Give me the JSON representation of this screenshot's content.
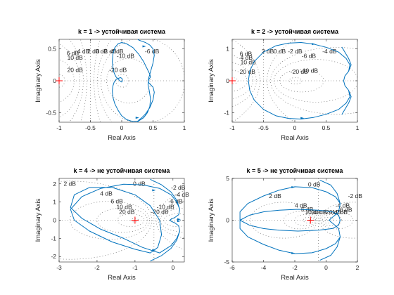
{
  "chart_data": [
    {
      "type": "line",
      "title": "k = 1 -> устойчивая система",
      "xlabel": "Real Axis",
      "ylabel": "Imaginary Axis",
      "xlim": [
        -1,
        1
      ],
      "ylim": [
        -0.65,
        0.65
      ],
      "xticks": [
        -1,
        -0.5,
        0,
        0.5,
        1
      ],
      "xtick_labels": [
        "-1",
        "-0.5",
        "0",
        "0.5",
        "1"
      ],
      "yticks": [
        -0.5,
        0,
        0.5
      ],
      "ytick_labels": [
        "-0.5",
        "0",
        "0.5"
      ],
      "grid_labels": [
        "6 dB",
        "10 dB",
        "4 dB",
        "2 dB",
        "0 dB",
        "-2 dB",
        "-4 dB",
        "-10 dB",
        "-6 dB",
        "20 dB",
        "-20 dB"
      ],
      "critical_point": [
        -1,
        0
      ],
      "series": [
        {
          "x": [
            0.25,
            0.27,
            0.32,
            0.38,
            0.45,
            0.5,
            0.52,
            0.5,
            0.46,
            0.43,
            0.42,
            0.44,
            0.46,
            0.45,
            0.41,
            0.35,
            0.27,
            0.18,
            0.08,
            0,
            -0.06,
            -0.11,
            -0.14,
            -0.15,
            -0.14,
            -0.12,
            -0.09,
            -0.05,
            -0.02,
            0,
            0.01,
            0.01,
            0,
            -0.02,
            -0.05,
            -0.09,
            -0.12,
            -0.14,
            -0.15,
            -0.14,
            -0.11,
            -0.06,
            0,
            0.08,
            0.18,
            0.27,
            0.35,
            0.41,
            0.45,
            0.46,
            0.44,
            0.42,
            0.43,
            0.46,
            0.5,
            0.52,
            0.5,
            0.45,
            0.38,
            0.32,
            0.27,
            0.25
          ],
          "y": [
            -0.66,
            -0.62,
            -0.58,
            -0.52,
            -0.42,
            -0.3,
            -0.18,
            -0.1,
            -0.06,
            -0.03,
            0,
            0.03,
            0.06,
            0.1,
            0.18,
            0.3,
            0.42,
            0.52,
            0.58,
            0.6,
            0.58,
            0.52,
            0.42,
            0.3,
            0.2,
            0.12,
            0.06,
            0.02,
            -0.01,
            -0.02,
            0,
            0.02,
            0.04,
            0.05,
            0.04,
            0.02,
            -0.02,
            -0.08,
            -0.16,
            -0.26,
            -0.36,
            -0.46,
            -0.55,
            -0.61,
            -0.64,
            -0.63,
            -0.58,
            -0.5,
            -0.4,
            -0.28,
            -0.16,
            -0.06,
            0.04,
            0.14,
            0.28,
            0.4,
            0.5,
            0.56,
            0.6,
            0.62,
            0.64,
            0.66
          ]
        }
      ],
      "arrow_points": [
        [
          0.25,
          -0.58
        ],
        [
          0.36,
          0.54
        ]
      ]
    },
    {
      "type": "line",
      "title": "k = 2 -> устойчивая система",
      "xlabel": "Real Axis",
      "ylabel": "Imaginary Axis",
      "xlim": [
        -1,
        1
      ],
      "ylim": [
        -1.3,
        1.3
      ],
      "xticks": [
        -1,
        -0.5,
        0,
        0.5,
        1
      ],
      "xtick_labels": [
        "-1",
        "-0.5",
        "0",
        "0.5",
        "1"
      ],
      "yticks": [
        -1,
        0,
        1
      ],
      "ytick_labels": [
        "-1",
        "0",
        "1"
      ],
      "grid_labels": [
        "6 dB",
        "4 dB",
        "10 dB",
        "2 dB",
        "0 dB",
        "-2 dB",
        "-4 dB",
        "-6 dB",
        "-10 dB",
        "20 dB",
        "-20 dB"
      ],
      "critical_point": [
        -1,
        0
      ],
      "series": [
        {
          "x": [
            0.75,
            0.8,
            0.86,
            0.9,
            0.86,
            0.8,
            0.78,
            0.8,
            0.86,
            0.88,
            0.82,
            0.7,
            0.5,
            0.3,
            0.1,
            -0.1,
            -0.3,
            -0.5,
            -0.65,
            -0.72,
            -0.74,
            -0.72,
            -0.65,
            -0.5,
            -0.3,
            -0.1,
            0.1,
            0.3,
            0.5,
            0.7,
            0.82,
            0.88,
            0.86,
            0.8,
            0.78,
            0.8,
            0.86,
            0.9,
            0.86,
            0.8,
            0.75
          ],
          "y": [
            -1.06,
            -0.9,
            -0.7,
            -0.5,
            -0.3,
            -0.15,
            0,
            0.15,
            0.3,
            0.5,
            0.7,
            0.9,
            1.05,
            1.15,
            1.2,
            1.18,
            1.1,
            0.9,
            0.6,
            0.3,
            0,
            -0.3,
            -0.6,
            -0.9,
            -1.1,
            -1.18,
            -1.2,
            -1.15,
            -1.05,
            -0.9,
            -0.7,
            -0.5,
            -0.3,
            -0.15,
            0,
            0.15,
            0.3,
            0.5,
            0.7,
            0.9,
            1.06
          ]
        }
      ],
      "arrow_points": [
        [
          0.12,
          -1.17
        ],
        [
          0.3,
          1.15
        ]
      ]
    },
    {
      "type": "line",
      "title": "k = 4 -> не устойчивая система",
      "xlabel": "Real Axis",
      "ylabel": "Imaginary Axis",
      "xlim": [
        -3,
        0.3
      ],
      "ylim": [
        -2.3,
        2.3
      ],
      "xticks": [
        -3,
        -2,
        -1,
        0
      ],
      "xtick_labels": [
        "-3",
        "-2",
        "-1",
        "0"
      ],
      "yticks": [
        -2,
        -1,
        0,
        1,
        2
      ],
      "ytick_labels": [
        "-2",
        "-1",
        "0",
        "1",
        "2"
      ],
      "grid_labels": [
        "2 dB",
        "0 dB",
        "-2 dB",
        "4 dB",
        "-4 dB",
        "6 dB",
        "-6 dB",
        "10 dB",
        "-10 dB",
        "20 dB",
        "-20 dB"
      ],
      "critical_point": [
        -1,
        0
      ],
      "series": [
        {
          "x": [
            -0.6,
            -0.3,
            -0.05,
            0.1,
            0.18,
            0.15,
            0.05,
            -0.05,
            -0.08,
            -0.05,
            0.05,
            0.15,
            0.18,
            0.1,
            -0.05,
            -0.35,
            -0.8,
            -1.3,
            -1.9,
            -2.4,
            -2.7,
            -2.6,
            -2.2,
            -1.6,
            -1.0,
            -0.6,
            -0.4,
            -0.3,
            -0.35,
            -0.6,
            -1.0,
            -1.6,
            -2.2,
            -2.6,
            -2.7,
            -2.4,
            -1.9,
            -1.3,
            -0.8,
            -0.35,
            -0.05,
            0.1,
            0.18,
            0.15,
            0.05,
            -0.05,
            -0.08,
            -0.05,
            0.05,
            0.15,
            0.18,
            0.1,
            -0.05,
            -0.3,
            -0.6
          ],
          "y": [
            -2.25,
            -1.95,
            -1.55,
            -1.1,
            -0.6,
            -0.3,
            -0.15,
            -0.05,
            0,
            0.05,
            0.15,
            0.3,
            0.6,
            1.0,
            1.4,
            1.75,
            1.95,
            1.98,
            1.75,
            1.3,
            0.6,
            0,
            -0.6,
            -1.2,
            -1.6,
            -1.8,
            -1.5,
            -0.8,
            0,
            0.8,
            1.4,
            1.8,
            1.8,
            1.4,
            0.7,
            0.1,
            -0.5,
            -1.0,
            -1.5,
            -1.8,
            -1.4,
            -1.0,
            -0.6,
            -0.3,
            -0.15,
            -0.05,
            0,
            0.05,
            0.15,
            0.3,
            0.6,
            1.1,
            1.55,
            1.95,
            2.25
          ]
        }
      ],
      "arrow_points": [
        [
          0.16,
          -0.05
        ],
        [
          0.16,
          0.05
        ],
        [
          -0.5,
          1.65
        ],
        [
          -0.5,
          -1.65
        ]
      ]
    },
    {
      "type": "line",
      "title": "k = 5 -> не устойчивая система",
      "xlabel": "Real Axis",
      "ylabel": "Imaginary Axis",
      "xlim": [
        -6,
        2
      ],
      "ylim": [
        -5,
        5
      ],
      "xticks": [
        -6,
        -4,
        -2,
        0,
        2
      ],
      "xtick_labels": [
        "-6",
        "-4",
        "-2",
        "0",
        "2"
      ],
      "yticks": [
        -5,
        0,
        5
      ],
      "ytick_labels": [
        "-5",
        "0",
        "5"
      ],
      "grid_labels": [
        "0 dB",
        "2 dB",
        "-2 dB",
        "4 dB",
        "-4 dB",
        "6 dB",
        "10 dB",
        "20 dB",
        "-20 dB",
        "-10 dB",
        "-6 dB"
      ],
      "critical_point": [
        -1,
        0
      ],
      "series": [
        {
          "x": [
            -0.4,
            0.3,
            0.7,
            0.9,
            0.8,
            0.5,
            0.3,
            0.2,
            0.3,
            0.5,
            0.8,
            0.9,
            0.6,
            0,
            -0.9,
            -2,
            -3,
            -4,
            -5,
            -5.5,
            -5.5,
            -4.9,
            -4,
            -3,
            -1.8,
            -0.5,
            0.4,
            0.8,
            0.9,
            0.8,
            0.4,
            -0.5,
            -1.8,
            -3,
            -4,
            -4.9,
            -5.5,
            -5.5,
            -5,
            -4,
            -3,
            -2,
            -0.9,
            0,
            0.6,
            0.9,
            0.8,
            0.5,
            0.3,
            0.2,
            0.3,
            0.5,
            0.8,
            0.9,
            0.7,
            0.3,
            -0.4
          ],
          "y": [
            -4.8,
            -4.2,
            -3.2,
            -2,
            -1,
            -0.5,
            -0.2,
            0,
            0.2,
            0.5,
            1,
            2,
            2.8,
            3.4,
            3.9,
            4.0,
            3.6,
            2.9,
            2.0,
            1.0,
            0,
            -0.6,
            -1.0,
            -1.2,
            -1.3,
            -1.2,
            -1.0,
            -0.6,
            0,
            0.6,
            1.0,
            1.2,
            1.3,
            1.2,
            1.0,
            0.6,
            0,
            -1.0,
            -2.0,
            -2.9,
            -3.6,
            -4.0,
            -3.9,
            -3.4,
            -2.8,
            -2,
            -1,
            -0.5,
            -0.2,
            0,
            0.2,
            0.5,
            1,
            2,
            3.2,
            4.2,
            4.8
          ]
        }
      ],
      "arrow_points": [
        [
          -2.1,
          3.95
        ],
        [
          -2.1,
          -3.95
        ]
      ]
    }
  ]
}
